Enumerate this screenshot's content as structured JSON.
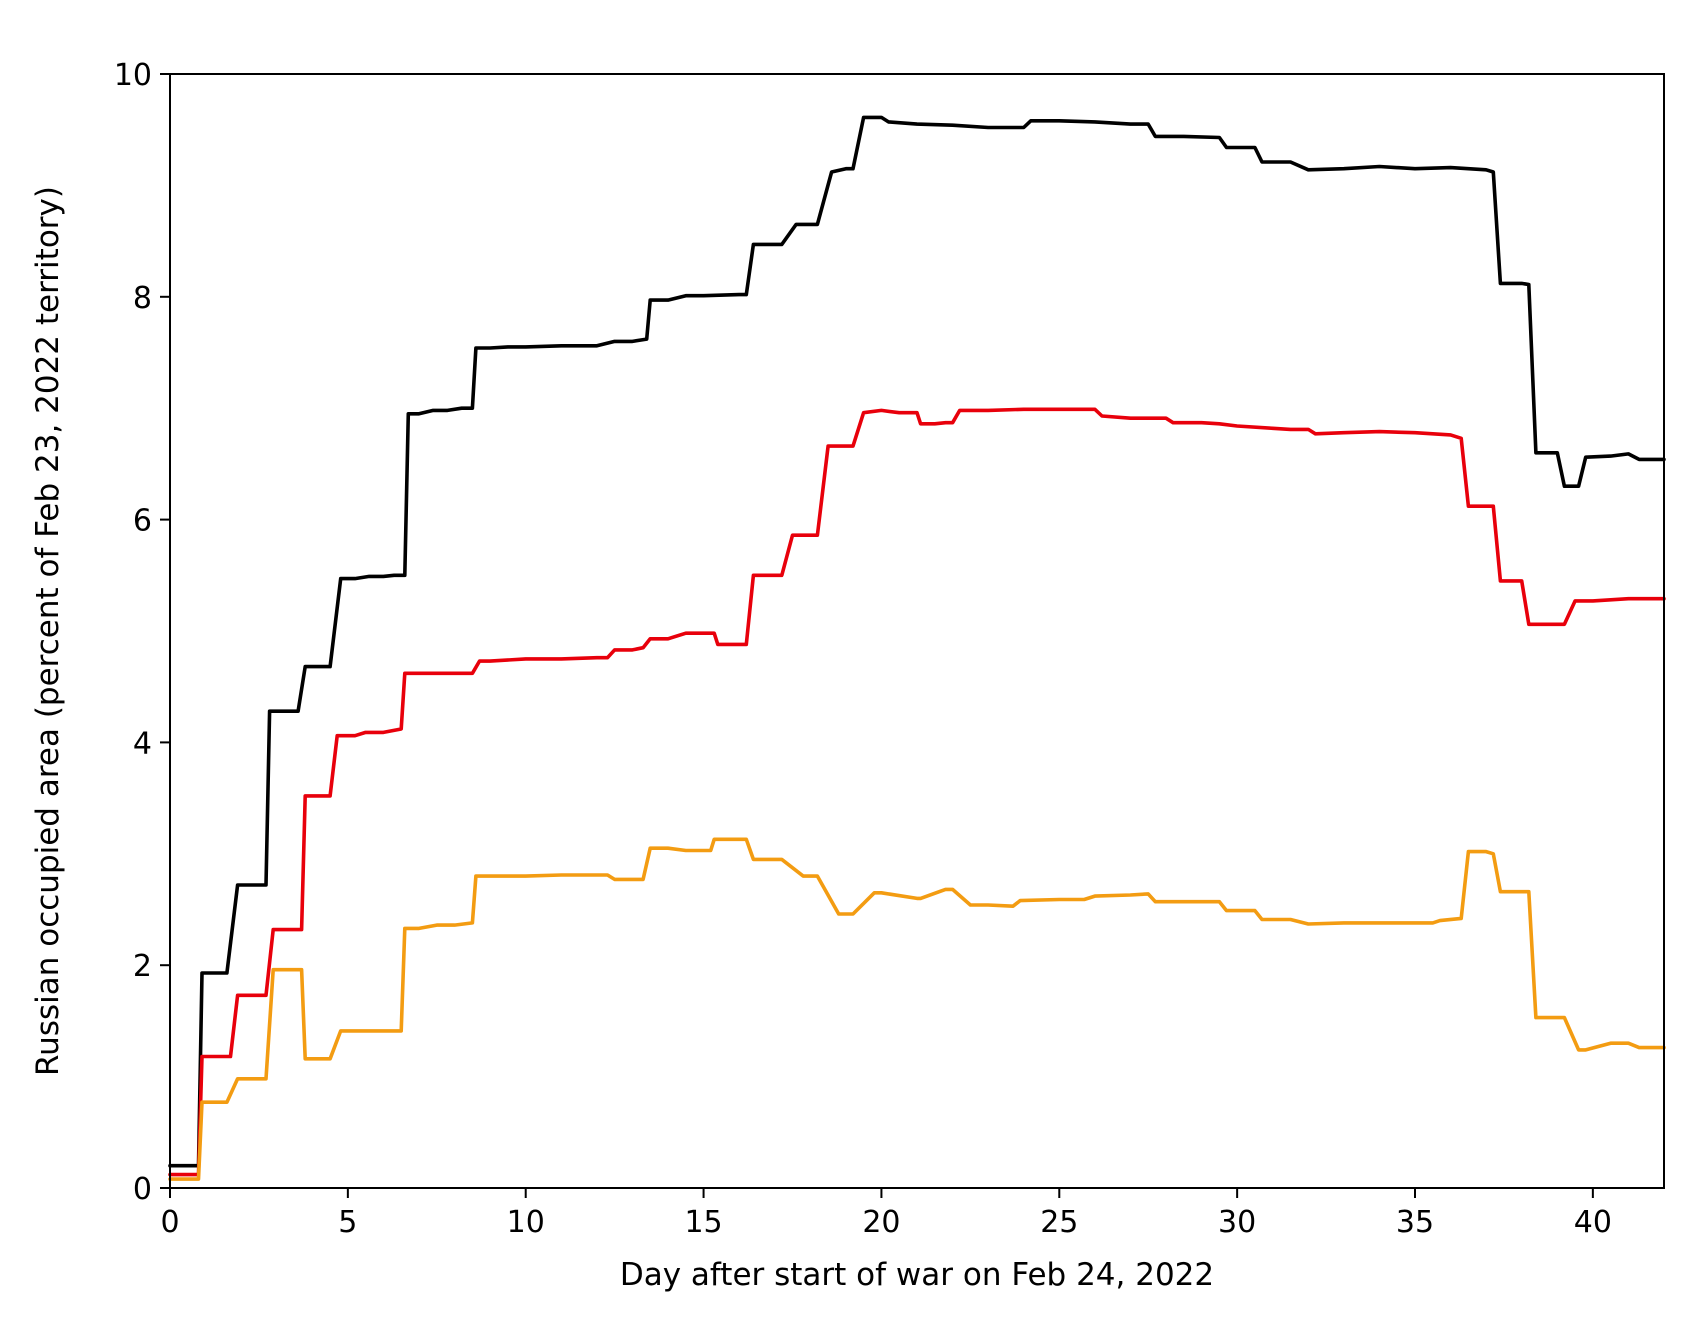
{
  "chart_data": {
    "type": "line",
    "title": "",
    "xlabel": "Day after start of war on Feb 24, 2022",
    "ylabel": "Russian occupied area (percent of Feb 23, 2022 territory)",
    "xlim": [
      0,
      42
    ],
    "ylim": [
      0,
      10
    ],
    "xticks": [
      0,
      5,
      10,
      15,
      20,
      25,
      30,
      35,
      40
    ],
    "yticks": [
      0,
      2,
      4,
      6,
      8,
      10
    ],
    "grid": false,
    "legend": "none",
    "series": [
      {
        "color": "#000000",
        "x": [
          0,
          0.8,
          0.9,
          1.6,
          1.9,
          2.7,
          2.8,
          3.6,
          3.8,
          4.5,
          4.8,
          5.2,
          5.6,
          6.0,
          6.3,
          6.6,
          6.7,
          7.0,
          7.4,
          7.8,
          8.2,
          8.5,
          8.6,
          9.0,
          9.5,
          10.0,
          11.0,
          12.0,
          12.5,
          13.0,
          13.4,
          13.5,
          14.0,
          14.5,
          15.0,
          16.0,
          16.2,
          16.4,
          17.0,
          17.2,
          17.6,
          18.0,
          18.2,
          18.6,
          19.0,
          19.2,
          19.5,
          20.0,
          20.2,
          21.0,
          22.0,
          23.0,
          24.0,
          24.2,
          25.0,
          26.0,
          27.0,
          27.5,
          27.7,
          28.5,
          29.5,
          29.7,
          30.5,
          30.7,
          31.5,
          32.0,
          33.0,
          34.0,
          35.0,
          36.0,
          37.0,
          37.2,
          37.4,
          38.0,
          38.2,
          38.4,
          39.0,
          39.2,
          39.6,
          39.8,
          40.5,
          41.0,
          41.3,
          42.0
        ],
        "y": [
          0.2,
          0.2,
          1.93,
          1.93,
          2.72,
          2.72,
          4.28,
          4.28,
          4.68,
          4.68,
          5.47,
          5.47,
          5.49,
          5.49,
          5.5,
          5.5,
          6.95,
          6.95,
          6.98,
          6.98,
          7.0,
          7.0,
          7.54,
          7.54,
          7.55,
          7.55,
          7.56,
          7.56,
          7.6,
          7.6,
          7.62,
          7.97,
          7.97,
          8.01,
          8.01,
          8.02,
          8.02,
          8.47,
          8.47,
          8.47,
          8.65,
          8.65,
          8.65,
          9.12,
          9.15,
          9.15,
          9.61,
          9.61,
          9.57,
          9.55,
          9.54,
          9.52,
          9.52,
          9.58,
          9.58,
          9.57,
          9.55,
          9.55,
          9.44,
          9.44,
          9.43,
          9.34,
          9.34,
          9.21,
          9.21,
          9.14,
          9.15,
          9.17,
          9.15,
          9.16,
          9.14,
          9.12,
          8.12,
          8.12,
          8.11,
          6.6,
          6.6,
          6.3,
          6.3,
          6.56,
          6.57,
          6.59,
          6.54,
          6.54
        ]
      },
      {
        "color": "#e8000b",
        "x": [
          0,
          0.8,
          0.9,
          1.7,
          1.9,
          2.7,
          2.9,
          3.7,
          3.8,
          4.5,
          4.7,
          5.2,
          5.5,
          6.0,
          6.5,
          6.6,
          7.0,
          7.5,
          8.0,
          8.5,
          8.7,
          9.0,
          10.0,
          11.0,
          12.0,
          12.3,
          12.5,
          13.0,
          13.3,
          13.5,
          14.0,
          14.5,
          15.0,
          15.3,
          15.4,
          16.0,
          16.2,
          16.4,
          17.0,
          17.2,
          17.5,
          18.0,
          18.2,
          18.5,
          19.0,
          19.2,
          19.5,
          20.0,
          20.5,
          21.0,
          21.1,
          21.5,
          21.8,
          22.0,
          22.2,
          23.0,
          24.0,
          25.0,
          26.0,
          26.2,
          27.0,
          28.0,
          28.2,
          29.0,
          29.5,
          30.0,
          31.0,
          31.5,
          32.0,
          32.2,
          33.0,
          34.0,
          35.0,
          36.0,
          36.2,
          36.3,
          36.5,
          37.2,
          37.4,
          38.0,
          38.2,
          39.0,
          39.2,
          39.5,
          40.0,
          41.0,
          42.0
        ],
        "y": [
          0.12,
          0.12,
          1.18,
          1.18,
          1.73,
          1.73,
          2.32,
          2.32,
          3.52,
          3.52,
          4.06,
          4.06,
          4.09,
          4.09,
          4.12,
          4.62,
          4.62,
          4.62,
          4.62,
          4.62,
          4.73,
          4.73,
          4.75,
          4.75,
          4.76,
          4.76,
          4.83,
          4.83,
          4.85,
          4.93,
          4.93,
          4.98,
          4.98,
          4.98,
          4.88,
          4.88,
          4.88,
          5.5,
          5.5,
          5.5,
          5.86,
          5.86,
          5.86,
          6.66,
          6.66,
          6.66,
          6.96,
          6.98,
          6.96,
          6.96,
          6.86,
          6.86,
          6.87,
          6.87,
          6.98,
          6.98,
          6.99,
          6.99,
          6.99,
          6.93,
          6.91,
          6.91,
          6.87,
          6.87,
          6.86,
          6.84,
          6.82,
          6.81,
          6.81,
          6.77,
          6.78,
          6.79,
          6.78,
          6.76,
          6.74,
          6.73,
          6.12,
          6.12,
          5.45,
          5.45,
          5.06,
          5.06,
          5.06,
          5.27,
          5.27,
          5.29,
          5.29
        ]
      },
      {
        "color": "#f39c12",
        "x": [
          0,
          0.8,
          0.9,
          1.6,
          1.9,
          2.7,
          2.9,
          3.7,
          3.8,
          4.5,
          4.8,
          6.5,
          6.6,
          7.0,
          7.5,
          8.0,
          8.5,
          8.6,
          9.0,
          9.5,
          10.0,
          11.0,
          12.0,
          12.3,
          12.5,
          13.3,
          13.5,
          14.0,
          14.5,
          15.0,
          15.2,
          15.3,
          16.0,
          16.2,
          16.4,
          17.0,
          17.2,
          17.8,
          18.0,
          18.2,
          18.8,
          19.0,
          19.2,
          19.8,
          20.0,
          21.0,
          21.1,
          21.8,
          22.0,
          22.5,
          23.0,
          23.7,
          23.9,
          25.0,
          25.7,
          26.0,
          27.0,
          27.5,
          27.7,
          28.5,
          29.5,
          29.7,
          30.5,
          30.7,
          31.5,
          32.0,
          33.0,
          34.0,
          35.0,
          35.5,
          35.7,
          36.3,
          36.5,
          37.0,
          37.2,
          37.4,
          38.0,
          38.2,
          38.4,
          39.0,
          39.2,
          39.6,
          39.8,
          40.5,
          41.0,
          41.3,
          42.0
        ],
        "y": [
          0.08,
          0.08,
          0.77,
          0.77,
          0.98,
          0.98,
          1.96,
          1.96,
          1.16,
          1.16,
          1.41,
          1.41,
          2.33,
          2.33,
          2.36,
          2.36,
          2.38,
          2.8,
          2.8,
          2.8,
          2.8,
          2.81,
          2.81,
          2.81,
          2.77,
          2.77,
          3.05,
          3.05,
          3.03,
          3.03,
          3.03,
          3.13,
          3.13,
          3.13,
          2.95,
          2.95,
          2.95,
          2.8,
          2.8,
          2.8,
          2.46,
          2.46,
          2.46,
          2.65,
          2.65,
          2.6,
          2.6,
          2.68,
          2.68,
          2.54,
          2.54,
          2.53,
          2.58,
          2.59,
          2.59,
          2.62,
          2.63,
          2.64,
          2.57,
          2.57,
          2.57,
          2.49,
          2.49,
          2.41,
          2.41,
          2.37,
          2.38,
          2.38,
          2.38,
          2.38,
          2.4,
          2.42,
          3.02,
          3.02,
          3.0,
          2.66,
          2.66,
          2.66,
          1.53,
          1.53,
          1.53,
          1.24,
          1.24,
          1.3,
          1.3,
          1.26,
          1.26
        ]
      }
    ]
  }
}
